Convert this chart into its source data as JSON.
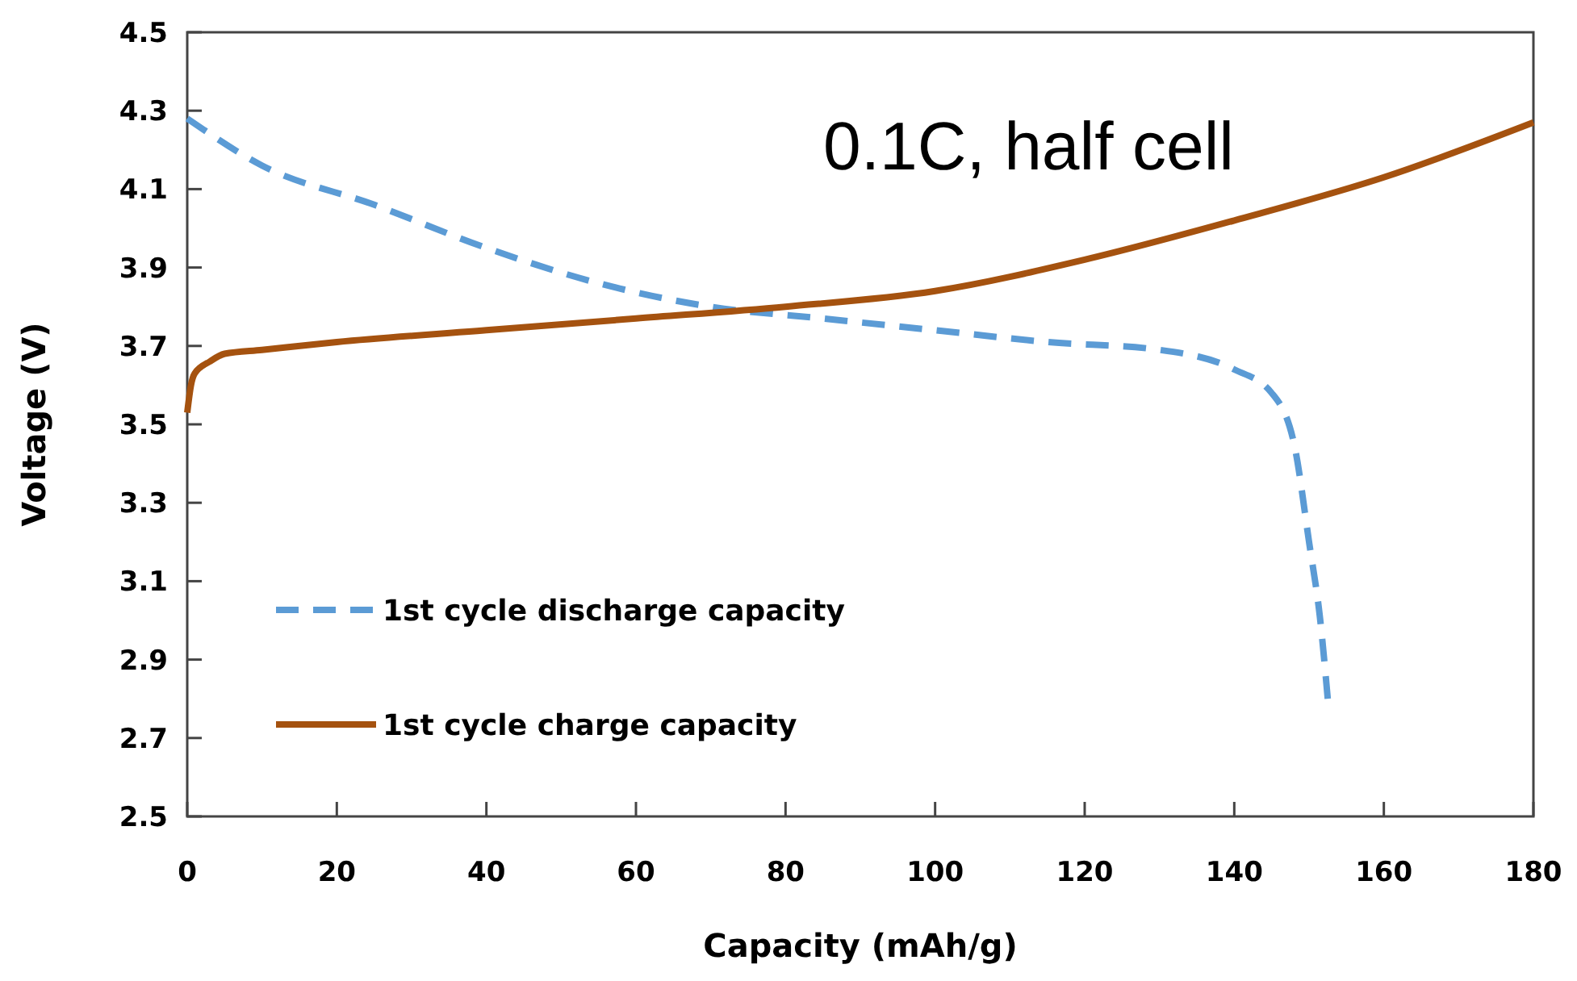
{
  "chart_data": {
    "type": "line",
    "xlabel": "Capacity (mAh/g)",
    "ylabel": "Voltage (V)",
    "annotations": [
      "0.1C, half cell"
    ],
    "xlim": [
      0,
      180
    ],
    "xticks": [
      0,
      20,
      40,
      60,
      80,
      100,
      120,
      140,
      160,
      180
    ],
    "ylim": [
      2.5,
      4.5
    ],
    "yticks": [
      2.5,
      2.7,
      2.9,
      3.1,
      3.3,
      3.5,
      3.7,
      3.9,
      4.1,
      4.3,
      4.5
    ],
    "legend": "bottom left",
    "grid": false,
    "series": [
      {
        "name": "1st cycle discharge capacity",
        "color": "#5b9bd5",
        "line_style": "dashed",
        "x": [
          0,
          10,
          25,
          40,
          55,
          70,
          85,
          100,
          115,
          130,
          140,
          145,
          148,
          150,
          151.5,
          152.5
        ],
        "values": [
          4.28,
          4.16,
          4.06,
          3.95,
          3.86,
          3.8,
          3.77,
          3.74,
          3.71,
          3.69,
          3.64,
          3.58,
          3.45,
          3.2,
          3.0,
          2.8
        ]
      },
      {
        "name": "1st cycle charge capacity",
        "color": "#a5520f",
        "line_style": "solid",
        "x": [
          0,
          0.5,
          1,
          3,
          5,
          10,
          20,
          40,
          60,
          80,
          100,
          120,
          140,
          160,
          180
        ],
        "values": [
          3.53,
          3.6,
          3.63,
          3.66,
          3.68,
          3.69,
          3.71,
          3.74,
          3.77,
          3.8,
          3.84,
          3.92,
          4.02,
          4.13,
          4.27
        ]
      }
    ]
  }
}
